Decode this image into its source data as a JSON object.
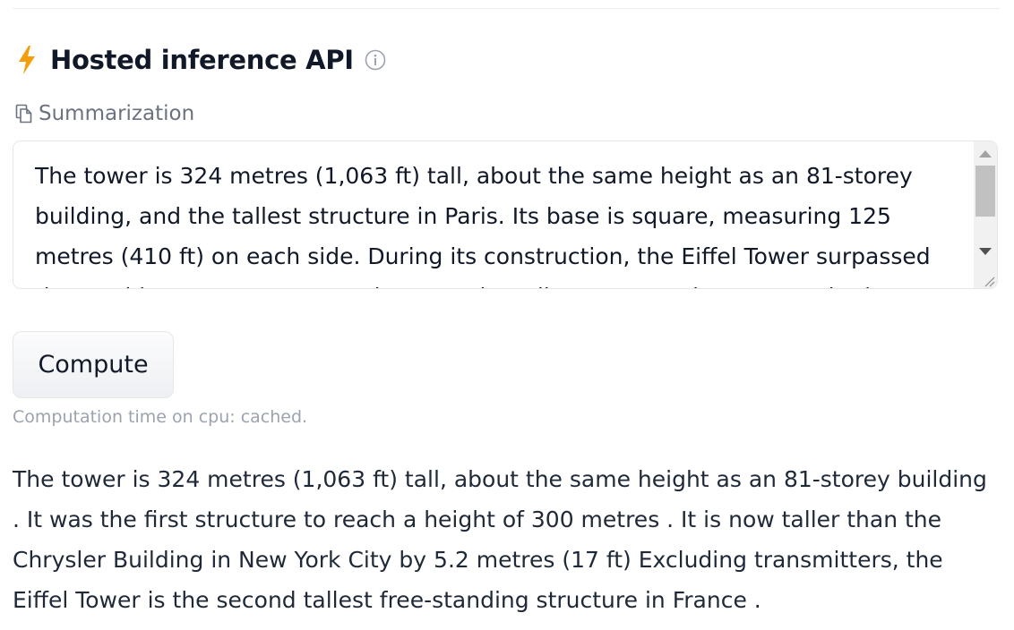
{
  "header": {
    "title": "Hosted inference API",
    "icon": "lightning-bolt-icon",
    "accent_color": "#f59e0b"
  },
  "task": {
    "icon": "copy-document-icon",
    "label": "Summarization"
  },
  "input": {
    "value": "The tower is 324 metres (1,063 ft) tall, about the same height as an 81-storey building, and the tallest structure in Paris. Its base is square, measuring 125 metres (410 ft) on each side. During its construction, the Eiffel Tower surpassed the Washington Monument to become the tallest man-made structure in the"
  },
  "compute_button": {
    "label": "Compute"
  },
  "computation_time": "Computation time on cpu: cached.",
  "output": {
    "text": "The tower is 324 metres (1,063 ft) tall, about the same height as an 81-storey building . It was the first structure to reach a height of 300 metres . It is now taller than the Chrysler Building in New York City by 5.2 metres (17 ft) Excluding transmitters, the Eiffel Tower is the second tallest free-standing structure in France ."
  }
}
